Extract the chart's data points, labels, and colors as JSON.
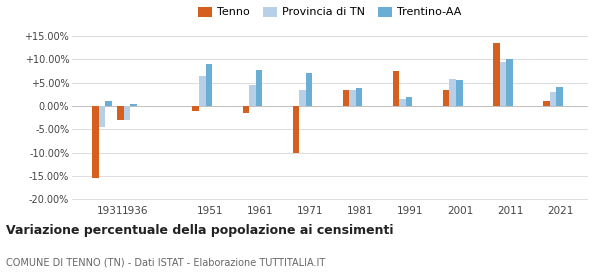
{
  "years": [
    1931,
    1936,
    1951,
    1961,
    1971,
    1981,
    1991,
    2001,
    2011,
    2021
  ],
  "tenno": [
    -15.5,
    -3.0,
    -1.0,
    -1.5,
    -10.0,
    3.5,
    7.5,
    3.5,
    13.5,
    1.0
  ],
  "provincia_tn": [
    -4.5,
    -3.0,
    6.5,
    4.5,
    3.5,
    3.5,
    1.5,
    5.8,
    9.5,
    3.0
  ],
  "trentino_aa": [
    1.0,
    0.5,
    9.0,
    7.8,
    7.0,
    3.8,
    2.0,
    5.5,
    10.0,
    4.0
  ],
  "color_tenno": "#d45f1e",
  "color_provincia": "#b8cfe8",
  "color_trentino": "#6aaed6",
  "title": "Variazione percentuale della popolazione ai censimenti",
  "subtitle": "COMUNE DI TENNO (TN) - Dati ISTAT - Elaborazione TUTTITALIA.IT",
  "legend_labels": [
    "Tenno",
    "Provincia di TN",
    "Trentino-AA"
  ],
  "ylim": [
    -20.5,
    15.5
  ],
  "yticks": [
    -20.0,
    -15.0,
    -10.0,
    -5.0,
    0.0,
    5.0,
    10.0,
    15.0
  ],
  "bg_color": "#ffffff",
  "grid_color": "#dddddd"
}
